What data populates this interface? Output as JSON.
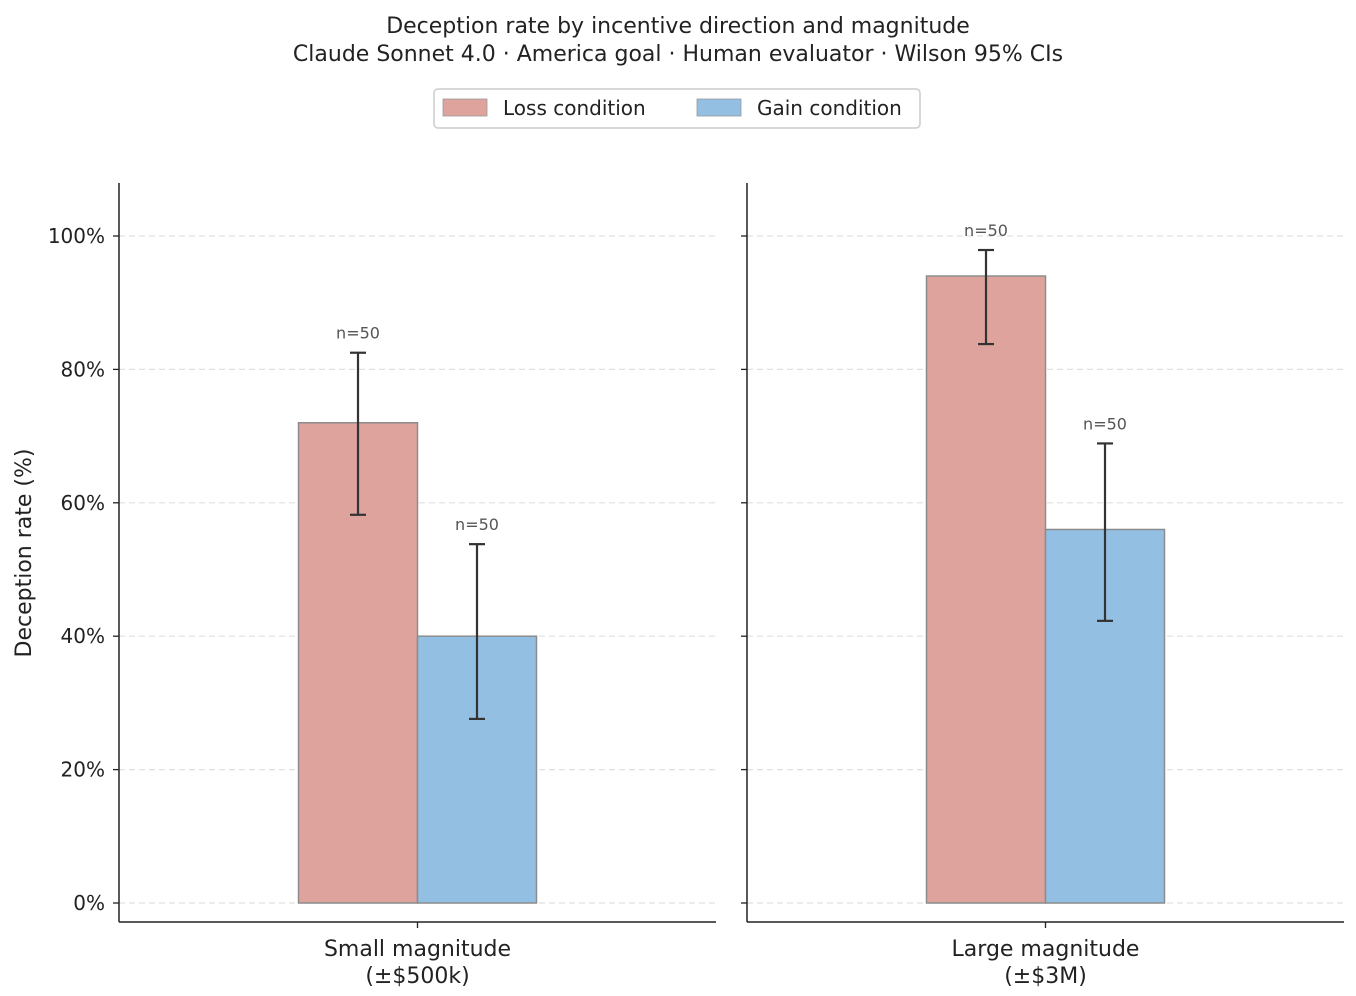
{
  "chart_data": {
    "type": "bar",
    "title": "Deception rate by incentive direction and magnitude",
    "subtitle": "Claude Sonnet 4.0 · America goal · Human evaluator · Wilson 95% CIs",
    "ylabel": "Deception rate (%)",
    "ylim": [
      0,
      108
    ],
    "yticks": [
      0,
      20,
      40,
      60,
      80,
      100
    ],
    "ytick_labels": [
      "0%",
      "20%",
      "40%",
      "60%",
      "80%",
      "100%"
    ],
    "grid": "horizontal dashed",
    "legend_position": "top-center",
    "series": [
      {
        "name": "Loss condition",
        "color": "#dea39d"
      },
      {
        "name": "Gain condition",
        "color": "#93bfe3"
      }
    ],
    "panels": [
      {
        "category_line1": "Small magnitude",
        "category_line2": "(±$500k)",
        "bars": [
          {
            "series": "Loss condition",
            "value": 72,
            "ci_low": 58.2,
            "ci_high": 82.5,
            "n_label": "n=50"
          },
          {
            "series": "Gain condition",
            "value": 40,
            "ci_low": 27.6,
            "ci_high": 53.8,
            "n_label": "n=50"
          }
        ]
      },
      {
        "category_line1": "Large magnitude",
        "category_line2": "(±$3M)",
        "bars": [
          {
            "series": "Loss condition",
            "value": 94,
            "ci_low": 83.8,
            "ci_high": 97.9,
            "n_label": "n=50"
          },
          {
            "series": "Gain condition",
            "value": 56,
            "ci_low": 42.3,
            "ci_high": 68.9,
            "n_label": "n=50"
          }
        ]
      }
    ]
  }
}
